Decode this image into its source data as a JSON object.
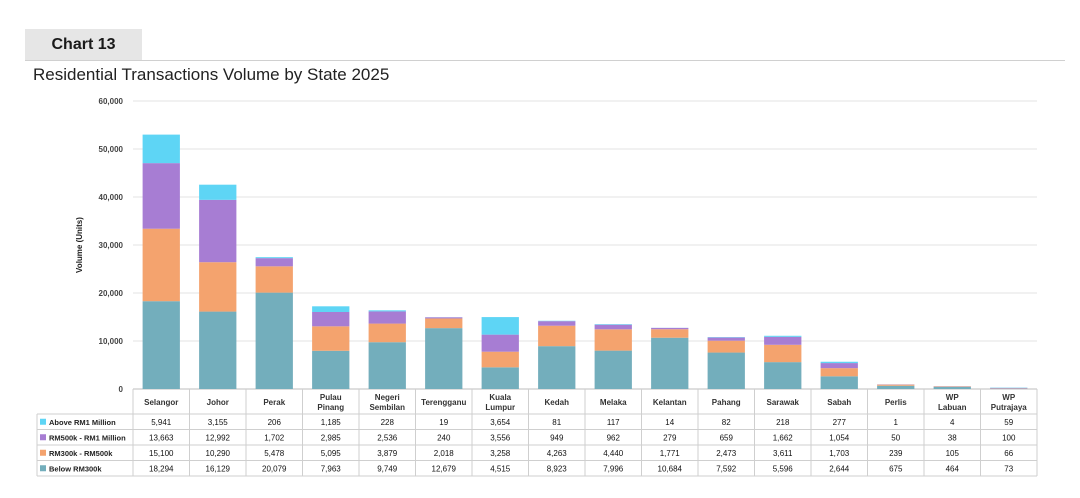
{
  "header": {
    "chart_number": "Chart 13"
  },
  "chart_data": {
    "type": "bar",
    "stacked": true,
    "title": "Residential Transactions Volume by State 2025",
    "xlabel": "",
    "ylabel": "Volume (Units)",
    "ylim": [
      0,
      60000
    ],
    "y_ticks": [
      0,
      10000,
      20000,
      30000,
      40000,
      50000,
      60000
    ],
    "y_tick_labels": [
      "0",
      "10,000",
      "20,000",
      "30,000",
      "40,000",
      "50,000",
      "60,000"
    ],
    "grid": true,
    "legend_position": "table-left",
    "categories": [
      [
        "Selangor"
      ],
      [
        "Johor"
      ],
      [
        "Perak"
      ],
      [
        "Pulau",
        "Pinang"
      ],
      [
        "Negeri",
        "Sembilan"
      ],
      [
        "Terengganu"
      ],
      [
        "Kuala",
        "Lumpur"
      ],
      [
        "Kedah"
      ],
      [
        "Melaka"
      ],
      [
        "Kelantan"
      ],
      [
        "Pahang"
      ],
      [
        "Sarawak"
      ],
      [
        "Sabah"
      ],
      [
        "Perlis"
      ],
      [
        "WP",
        "Labuan"
      ],
      [
        "WP",
        "Putrajaya"
      ]
    ],
    "series": [
      {
        "name": "Below RM300k",
        "color": "#73aebc",
        "values": [
          18294,
          16129,
          20079,
          7963,
          9749,
          12679,
          4515,
          8923,
          7996,
          10684,
          7592,
          5596,
          2644,
          675,
          464,
          73
        ],
        "labels": [
          "18,294",
          "16,129",
          "20,079",
          "7,963",
          "9,749",
          "12,679",
          "4,515",
          "8,923",
          "7,996",
          "10,684",
          "7,592",
          "5,596",
          "2,644",
          "675",
          "464",
          "73"
        ]
      },
      {
        "name": "RM300k - RM500k",
        "color": "#f4a36e",
        "values": [
          15100,
          10290,
          5478,
          5095,
          3879,
          2018,
          3258,
          4263,
          4440,
          1771,
          2473,
          3611,
          1703,
          239,
          105,
          66
        ],
        "labels": [
          "15,100",
          "10,290",
          "5,478",
          "5,095",
          "3,879",
          "2,018",
          "3,258",
          "4,263",
          "4,440",
          "1,771",
          "2,473",
          "3,611",
          "1,703",
          "239",
          "105",
          "66"
        ]
      },
      {
        "name": "RM500k - RM1 Million",
        "color": "#a77dd3",
        "values": [
          13663,
          12992,
          1702,
          2985,
          2536,
          240,
          3556,
          949,
          962,
          279,
          659,
          1662,
          1054,
          50,
          38,
          100
        ],
        "labels": [
          "13,663",
          "12,992",
          "1,702",
          "2,985",
          "2,536",
          "240",
          "3,556",
          "949",
          "962",
          "279",
          "659",
          "1,662",
          "1,054",
          "50",
          "38",
          "100"
        ]
      },
      {
        "name": "Above RM1 Million",
        "color": "#5ed5f5",
        "values": [
          5941,
          3155,
          206,
          1185,
          228,
          19,
          3654,
          81,
          117,
          14,
          82,
          218,
          277,
          1,
          4,
          59
        ],
        "labels": [
          "5,941",
          "3,155",
          "206",
          "1,185",
          "228",
          "19",
          "3,654",
          "81",
          "117",
          "14",
          "82",
          "218",
          "277",
          "1",
          "4",
          "59"
        ]
      }
    ],
    "table_row_order": [
      "Above RM1 Million",
      "RM500k - RM1 Million",
      "RM300k - RM500k",
      "Below RM300k"
    ]
  }
}
